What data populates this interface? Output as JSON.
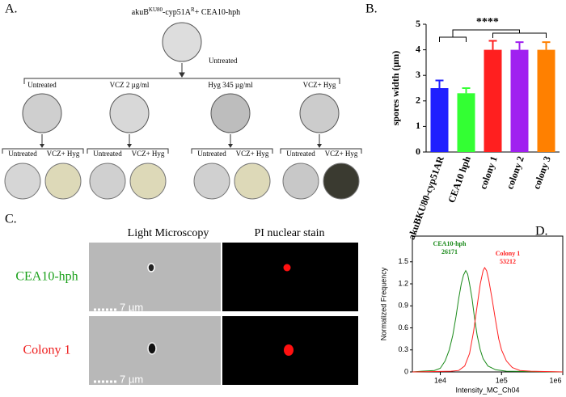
{
  "panel_a": {
    "letter": "A.",
    "title_parts": [
      "akuB",
      "KU80",
      "-cyp51A",
      "R",
      "+ CEA10-hph"
    ],
    "top_label": "Untreated",
    "branches": [
      {
        "label": "Untreated",
        "sub": [
          "Untreated",
          "VCZ+ Hyg"
        ]
      },
      {
        "label": "VCZ 2 µg/ml",
        "sub": [
          "Untreated",
          "VCZ+ Hyg"
        ]
      },
      {
        "label": "Hyg 345 µg/ml",
        "sub": [
          "Untreated",
          "VCZ+ Hyg"
        ]
      },
      {
        "label": "VCZ+ Hyg",
        "sub": [
          "Untreated",
          "VCZ+ Hyg"
        ]
      }
    ]
  },
  "panel_c": {
    "letter": "C.",
    "columns": [
      "Light Microscopy",
      "PI nuclear stain"
    ],
    "rows": [
      "CEA10-hph",
      "Colony 1"
    ],
    "scale_bar": "7 µm"
  },
  "chart_data": [
    {
      "type": "bar",
      "panel_label": "B.",
      "y_label": "spores width (μm)",
      "significance": "****",
      "categories": [
        "akuBKU80-cyp51AR",
        "CEA10 hph",
        "colony 1",
        "colony 2",
        "colony 3"
      ],
      "values": [
        2.5,
        2.3,
        4.0,
        4.0,
        4.0
      ],
      "errors": [
        0.3,
        0.2,
        0.35,
        0.3,
        0.3
      ],
      "colors": [
        "#1f1fff",
        "#33ff33",
        "#ff1f1f",
        "#a020f0",
        "#ff8000"
      ],
      "ylim": [
        0,
        5
      ],
      "yticks": [
        0,
        1,
        2,
        3,
        4,
        5
      ]
    },
    {
      "type": "line",
      "panel_label": "D.",
      "x_label": "Intensity_MC_Ch04",
      "y_label": "Normalized Frequency",
      "log_x": true,
      "xlim": [
        3500,
        1000000
      ],
      "xticks": [
        {
          "value": 10000,
          "label": "1e4"
        },
        {
          "value": 100000,
          "label": "1e5"
        },
        {
          "value": 1000000,
          "label": "1e6"
        }
      ],
      "ylim": [
        0,
        1.85
      ],
      "yticks": [
        0,
        0.3,
        0.6,
        0.9,
        1.2,
        1.5
      ],
      "series": [
        {
          "name": "CEA10-hph",
          "annotation": "26171",
          "color": "#1a8a1a",
          "x": [
            3500,
            5000,
            8000,
            10000,
            12000,
            14000,
            16000,
            18000,
            20000,
            22000,
            24000,
            26000,
            28000,
            30000,
            33000,
            36000,
            40000,
            45000,
            50000,
            60000,
            80000,
            120000,
            1000000
          ],
          "values": [
            0,
            0.01,
            0.02,
            0.05,
            0.15,
            0.3,
            0.5,
            0.75,
            1.0,
            1.2,
            1.32,
            1.38,
            1.33,
            1.2,
            1.0,
            0.75,
            0.5,
            0.3,
            0.18,
            0.08,
            0.03,
            0.01,
            0
          ]
        },
        {
          "name": "Colony 1",
          "annotation": "53212",
          "color": "#ff2020",
          "x": [
            3500,
            15000,
            20000,
            25000,
            30000,
            35000,
            40000,
            45000,
            50000,
            53000,
            57000,
            62000,
            70000,
            80000,
            90000,
            100000,
            120000,
            150000,
            200000,
            300000,
            1000000
          ],
          "values": [
            0,
            0.01,
            0.02,
            0.08,
            0.25,
            0.55,
            0.9,
            1.2,
            1.38,
            1.42,
            1.38,
            1.25,
            1.0,
            0.7,
            0.45,
            0.3,
            0.15,
            0.06,
            0.02,
            0.01,
            0
          ]
        }
      ]
    }
  ]
}
